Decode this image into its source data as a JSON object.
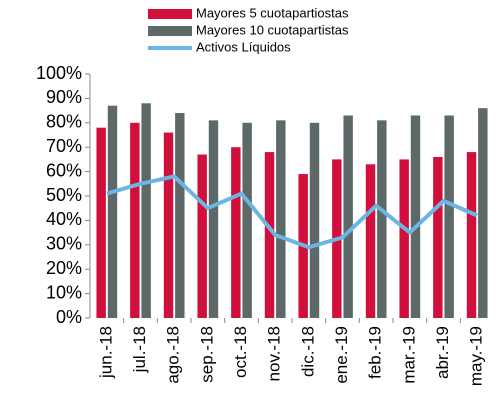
{
  "chart_data": {
    "type": "bar_line",
    "categories": [
      "jun.-18",
      "jul.-18",
      "ago.-18",
      "sep.-18",
      "oct.-18",
      "nov.-18",
      "dic.-18",
      "ene.-19",
      "feb.-19",
      "mar.-19",
      "abr.-19",
      "may.-19"
    ],
    "series": [
      {
        "name": "Mayores 5 cuotapartiostas",
        "type": "bar",
        "color": "#d0103a",
        "values": [
          78,
          80,
          76,
          67,
          70,
          68,
          59,
          65,
          63,
          65,
          66,
          68
        ]
      },
      {
        "name": "Mayores 10 cuotapartistas",
        "type": "bar",
        "color": "#5d6868",
        "values": [
          87,
          88,
          84,
          81,
          80,
          81,
          80,
          83,
          81,
          83,
          83,
          86
        ]
      },
      {
        "name": "Activos Líquidos",
        "type": "line",
        "color": "#6cb4e4",
        "values": [
          51,
          55,
          58,
          45,
          51,
          34,
          29,
          33,
          46,
          35,
          48,
          42
        ]
      }
    ],
    "ylim": [
      0,
      100
    ],
    "yticks": [
      {
        "value": 0,
        "label": "0%"
      },
      {
        "value": 10,
        "label": "10%"
      },
      {
        "value": 20,
        "label": "20%"
      },
      {
        "value": 30,
        "label": "30%"
      },
      {
        "value": 40,
        "label": "40%"
      },
      {
        "value": 50,
        "label": "50%"
      },
      {
        "value": 60,
        "label": "60%"
      },
      {
        "value": 70,
        "label": "70%"
      },
      {
        "value": 80,
        "label": "80%"
      },
      {
        "value": 90,
        "label": "90%"
      },
      {
        "value": 100,
        "label": "100%"
      }
    ],
    "grid": false
  }
}
